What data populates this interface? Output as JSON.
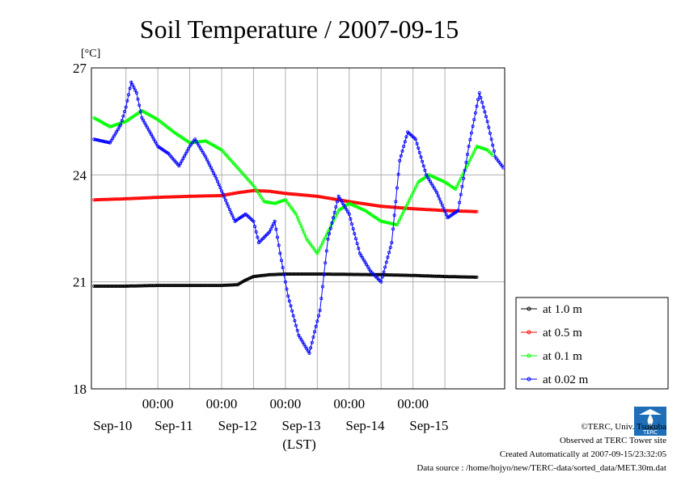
{
  "chart_data": {
    "type": "line",
    "title": "Soil Temperature / 2007-09-15",
    "ylabel": "[°C]",
    "xlabel": "(LST)",
    "ylim": [
      18,
      27
    ],
    "y_ticks": [
      18,
      21,
      24,
      27
    ],
    "x_range_hours": [
      0,
      144
    ],
    "x_tick_time_label": "00:00",
    "x_day_labels": [
      "Sep-10",
      "Sep-11",
      "Sep-12",
      "Sep-13",
      "Sep-14",
      "Sep-15"
    ],
    "grid": true,
    "legend_position": "right",
    "series": [
      {
        "name": "at 1.0 m",
        "color": "#000000",
        "points": [
          [
            0,
            20.88
          ],
          [
            12,
            20.88
          ],
          [
            24,
            20.9
          ],
          [
            36,
            20.9
          ],
          [
            48,
            20.9
          ],
          [
            54,
            20.92
          ],
          [
            57,
            21.05
          ],
          [
            60,
            21.15
          ],
          [
            66,
            21.2
          ],
          [
            72,
            21.22
          ],
          [
            84,
            21.22
          ],
          [
            96,
            21.21
          ],
          [
            108,
            21.2
          ],
          [
            120,
            21.18
          ],
          [
            132,
            21.15
          ],
          [
            144,
            21.13
          ]
        ]
      },
      {
        "name": "at 0.5 m",
        "color": "#ff0000",
        "points": [
          [
            0,
            23.3
          ],
          [
            12,
            23.33
          ],
          [
            24,
            23.37
          ],
          [
            36,
            23.4
          ],
          [
            48,
            23.42
          ],
          [
            54,
            23.5
          ],
          [
            60,
            23.56
          ],
          [
            66,
            23.54
          ],
          [
            72,
            23.48
          ],
          [
            84,
            23.4
          ],
          [
            96,
            23.25
          ],
          [
            108,
            23.12
          ],
          [
            120,
            23.05
          ],
          [
            132,
            23.0
          ],
          [
            144,
            22.97
          ]
        ]
      },
      {
        "name": "at 0.1 m",
        "color": "#00ff00",
        "points": [
          [
            0,
            25.6
          ],
          [
            6,
            25.35
          ],
          [
            12,
            25.5
          ],
          [
            18,
            25.8
          ],
          [
            24,
            25.55
          ],
          [
            30,
            25.2
          ],
          [
            36,
            24.9
          ],
          [
            42,
            24.95
          ],
          [
            48,
            24.7
          ],
          [
            54,
            24.2
          ],
          [
            60,
            23.7
          ],
          [
            64,
            23.25
          ],
          [
            68,
            23.2
          ],
          [
            72,
            23.3
          ],
          [
            76,
            22.9
          ],
          [
            80,
            22.2
          ],
          [
            84,
            21.8
          ],
          [
            88,
            22.4
          ],
          [
            92,
            23.0
          ],
          [
            96,
            23.2
          ],
          [
            102,
            23.0
          ],
          [
            108,
            22.7
          ],
          [
            114,
            22.6
          ],
          [
            118,
            23.2
          ],
          [
            122,
            23.8
          ],
          [
            126,
            24.0
          ],
          [
            132,
            23.8
          ],
          [
            136,
            23.6
          ],
          [
            140,
            24.2
          ],
          [
            144,
            24.8
          ],
          [
            148,
            24.7
          ],
          [
            150,
            24.55
          ]
        ]
      },
      {
        "name": "at 0.02 m",
        "color": "#0000ff",
        "points": [
          [
            0,
            25.0
          ],
          [
            6,
            24.9
          ],
          [
            10,
            25.4
          ],
          [
            12,
            25.9
          ],
          [
            14,
            26.6
          ],
          [
            16,
            26.3
          ],
          [
            18,
            25.6
          ],
          [
            21,
            25.2
          ],
          [
            24,
            24.8
          ],
          [
            28,
            24.6
          ],
          [
            32,
            24.25
          ],
          [
            36,
            24.8
          ],
          [
            38,
            25.0
          ],
          [
            42,
            24.5
          ],
          [
            46,
            23.9
          ],
          [
            50,
            23.2
          ],
          [
            53,
            22.7
          ],
          [
            57,
            22.9
          ],
          [
            60,
            22.7
          ],
          [
            62,
            22.1
          ],
          [
            66,
            22.4
          ],
          [
            68,
            22.7
          ],
          [
            70,
            21.8
          ],
          [
            73,
            20.6
          ],
          [
            77,
            19.5
          ],
          [
            81,
            19.0
          ],
          [
            85,
            20.2
          ],
          [
            88,
            22.2
          ],
          [
            92,
            23.4
          ],
          [
            96,
            22.9
          ],
          [
            100,
            21.8
          ],
          [
            104,
            21.3
          ],
          [
            108,
            21.0
          ],
          [
            112,
            22.1
          ],
          [
            115,
            24.4
          ],
          [
            118,
            25.2
          ],
          [
            121,
            25.0
          ],
          [
            125,
            24.0
          ],
          [
            129,
            23.5
          ],
          [
            133,
            22.8
          ],
          [
            137,
            23.0
          ],
          [
            141,
            24.8
          ],
          [
            145,
            26.3
          ],
          [
            148,
            25.5
          ],
          [
            151,
            24.5
          ],
          [
            154,
            24.2
          ]
        ]
      }
    ]
  },
  "footer": {
    "copyright": "©TERC, Univ. Tsukuba",
    "observed": "Observed at TERC Tower site",
    "created": "Created Automatically at 2007-09-15/23:32:05",
    "source": "Data source : /home/hojyo/new/TERC-data/sorted_data/MET.30m.dat"
  },
  "logo_text": "TERC"
}
